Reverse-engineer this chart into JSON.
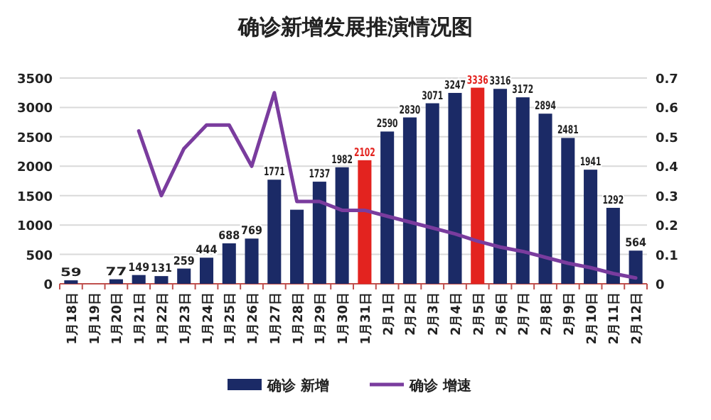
{
  "chart_data": {
    "type": "bar",
    "title": "确诊新增发展推演情况图",
    "categories": [
      "1月18日",
      "1月19日",
      "1月20日",
      "1月21日",
      "1月22日",
      "1月23日",
      "1月24日",
      "1月25日",
      "1月26日",
      "1月27日",
      "1月28日",
      "1月29日",
      "1月30日",
      "1月31日",
      "2月1日",
      "2月2日",
      "2月3日",
      "2月4日",
      "2月5日",
      "2月6日",
      "2月7日",
      "2月8日",
      "2月9日",
      "2月10日",
      "2月11日",
      "2月12日"
    ],
    "series": [
      {
        "name": "确诊 新增",
        "color": "#1b2a66",
        "colors": [
          "#1b2a66",
          "#1b2a66",
          "#1b2a66",
          "#1b2a66",
          "#1b2a66",
          "#1b2a66",
          "#1b2a66",
          "#1b2a66",
          "#1b2a66",
          "#1b2a66",
          "#1b2a66",
          "#1b2a66",
          "#1b2a66",
          "#e3231f",
          "#1b2a66",
          "#1b2a66",
          "#1b2a66",
          "#1b2a66",
          "#e3231f",
          "#1b2a66",
          "#1b2a66",
          "#1b2a66",
          "#1b2a66",
          "#1b2a66",
          "#1b2a66",
          "#1b2a66"
        ],
        "values": [
          59,
          null,
          77,
          149,
          131,
          259,
          444,
          688,
          769,
          1771,
          1260,
          1737,
          1982,
          2102,
          2590,
          2830,
          3071,
          3247,
          3336,
          3316,
          3172,
          2894,
          2481,
          1941,
          1292,
          564
        ],
        "value_labels": [
          "59",
          null,
          "77",
          "149",
          "131",
          "259",
          "444",
          "688",
          "769",
          "1771",
          null,
          "1737",
          "1982",
          "2102",
          "2590",
          "2830",
          "3071",
          "3247",
          "3336",
          "3316",
          "3172",
          "2894",
          "2481",
          "1941",
          "1292",
          "564"
        ]
      },
      {
        "name": "确诊 增速",
        "type": "line",
        "axis": "y2",
        "color": "#7a3c9e",
        "values": [
          null,
          null,
          null,
          0.52,
          0.3,
          0.46,
          0.54,
          0.54,
          0.4,
          0.65,
          0.28,
          0.28,
          0.25,
          0.25,
          0.23,
          0.21,
          0.19,
          0.17,
          0.145,
          0.125,
          0.11,
          0.09,
          0.07,
          0.055,
          0.035,
          0.02
        ]
      }
    ],
    "ylim": [
      0,
      3500
    ],
    "yticks": [
      0,
      500,
      1000,
      1500,
      2000,
      2500,
      3000,
      3500
    ],
    "y2lim": [
      0,
      0.7
    ],
    "y2ticks": [
      0,
      0.1,
      0.2,
      0.3,
      0.4,
      0.5,
      0.6,
      0.7
    ],
    "grid": "y",
    "legend": "bottom"
  }
}
